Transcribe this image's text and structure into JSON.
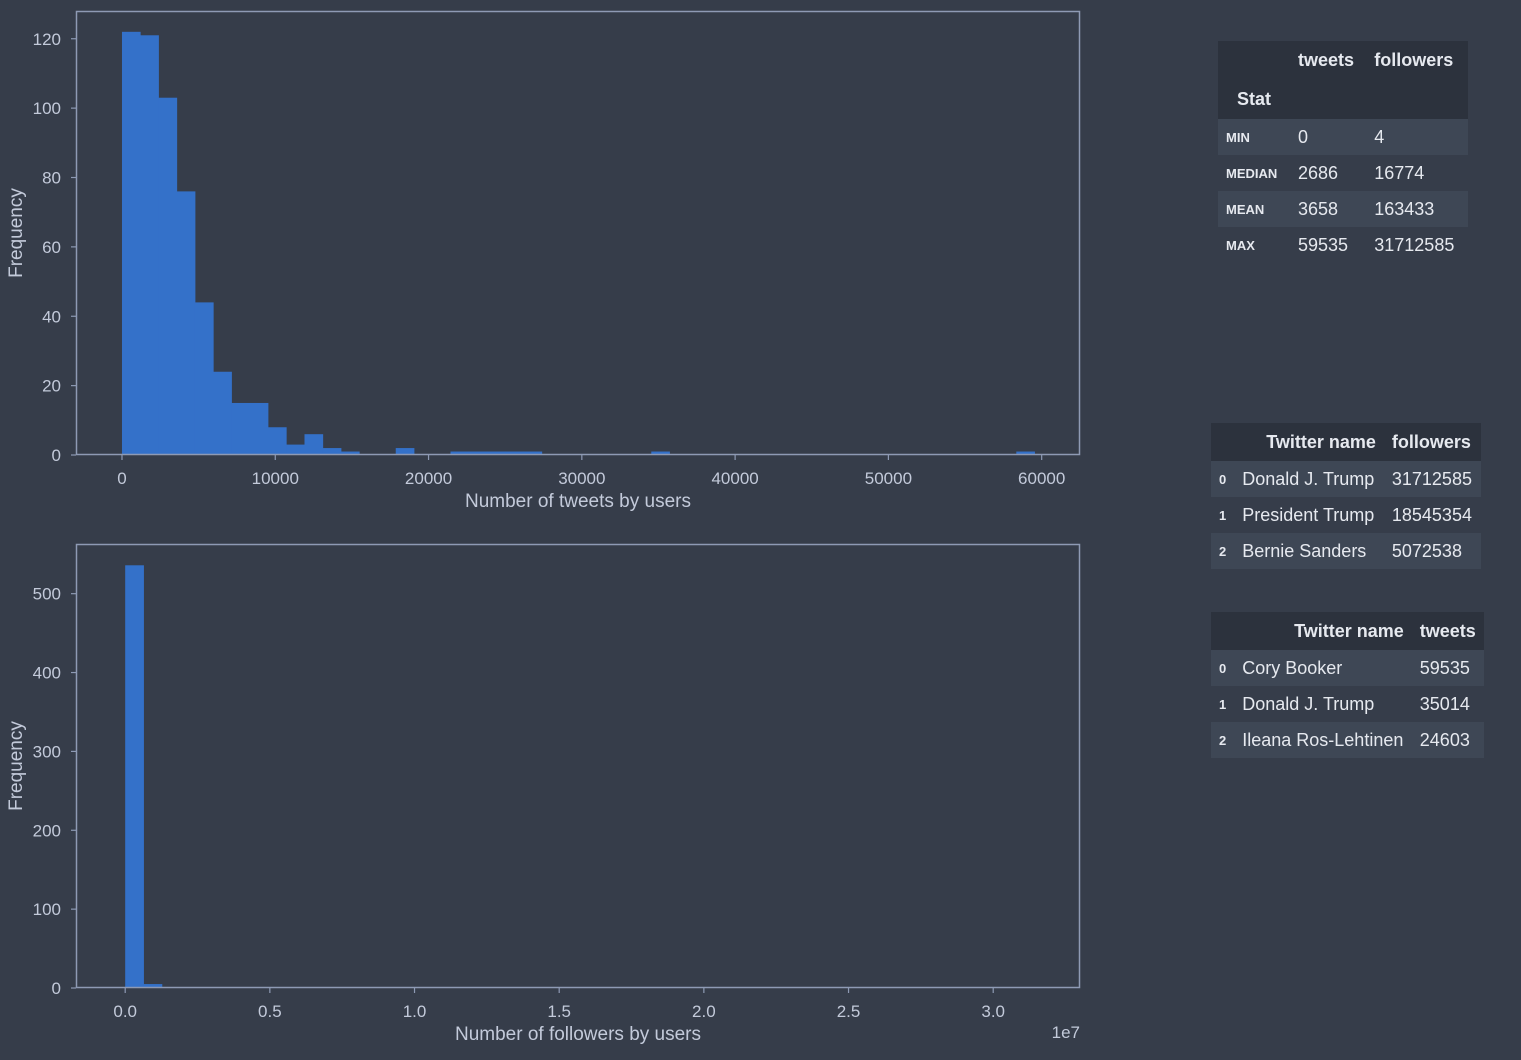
{
  "colors": {
    "background": "#363d4a",
    "bar": "#3471c9",
    "axes_frame": "#8e9ab4",
    "text": "#c3cada"
  },
  "chart_data": [
    {
      "type": "bar",
      "subtype": "histogram",
      "bin_width": 1190.7,
      "bin_start": 0,
      "values": [
        122,
        121,
        103,
        76,
        44,
        24,
        15,
        15,
        8,
        3,
        6,
        2,
        1,
        0,
        0,
        2,
        0,
        0,
        1,
        1,
        1,
        1,
        1,
        0,
        0,
        0,
        0,
        0,
        0,
        1,
        0,
        0,
        0,
        0,
        0,
        0,
        0,
        0,
        0,
        0,
        0,
        0,
        0,
        0,
        0,
        0,
        0,
        0,
        0,
        1
      ],
      "xlim": [
        -3000,
        62500
      ],
      "ylim": [
        0,
        128
      ],
      "xticks": [
        0,
        10000,
        20000,
        30000,
        40000,
        50000,
        60000
      ],
      "xtick_labels": [
        "0",
        "10000",
        "20000",
        "30000",
        "40000",
        "50000",
        "60000"
      ],
      "yticks": [
        0,
        20,
        40,
        60,
        80,
        100,
        120
      ],
      "ytick_labels": [
        "0",
        "20",
        "40",
        "60",
        "80",
        "100",
        "120"
      ],
      "xlabel": "Number of tweets by users",
      "ylabel": "Frequency",
      "offset_text": ""
    },
    {
      "type": "bar",
      "subtype": "histogram",
      "bin_width": 0.0634,
      "bin_start": 0,
      "values": [
        536,
        5,
        0,
        1,
        1,
        0,
        0,
        1,
        0,
        0,
        0,
        0,
        0,
        0,
        0,
        0,
        0,
        0,
        0,
        0,
        0,
        0,
        0,
        0,
        0,
        0,
        0,
        0,
        0,
        1,
        0,
        0,
        0,
        0,
        0,
        0,
        0,
        0,
        0,
        0,
        0,
        0,
        0,
        0,
        0,
        0,
        0,
        0,
        0,
        1
      ],
      "xlim": [
        -0.17,
        3.3
      ],
      "ylim": [
        0,
        563
      ],
      "xticks": [
        0,
        0.5,
        1.0,
        1.5,
        2.0,
        2.5,
        3.0
      ],
      "xtick_labels": [
        "0.0",
        "0.5",
        "1.0",
        "1.5",
        "2.0",
        "2.5",
        "3.0"
      ],
      "yticks": [
        0,
        100,
        200,
        300,
        400,
        500
      ],
      "ytick_labels": [
        "0",
        "100",
        "200",
        "300",
        "400",
        "500"
      ],
      "xlabel": "Number of followers by users",
      "ylabel": "Frequency",
      "offset_text": "1e7"
    }
  ],
  "stats_table": {
    "col1": "tweets",
    "col2": "followers",
    "index_name": "Stat",
    "rows": [
      {
        "label": "MIN",
        "tweets": "0",
        "followers": "4"
      },
      {
        "label": "MEDIAN",
        "tweets": "2686",
        "followers": "16774"
      },
      {
        "label": "MEAN",
        "tweets": "3658",
        "followers": "163433"
      },
      {
        "label": "MAX",
        "tweets": "59535",
        "followers": "31712585"
      }
    ]
  },
  "top_followers_table": {
    "col1": "Twitter name",
    "col2": "followers",
    "rows": [
      {
        "idx": "0",
        "name": "Donald J. Trump",
        "value": "31712585"
      },
      {
        "idx": "1",
        "name": "President Trump",
        "value": "18545354"
      },
      {
        "idx": "2",
        "name": "Bernie Sanders",
        "value": "5072538"
      }
    ]
  },
  "top_tweets_table": {
    "col1": "Twitter name",
    "col2": "tweets",
    "rows": [
      {
        "idx": "0",
        "name": "Cory Booker",
        "value": "59535"
      },
      {
        "idx": "1",
        "name": "Donald J. Trump",
        "value": "35014"
      },
      {
        "idx": "2",
        "name": "Ileana Ros-Lehtinen",
        "value": "24603"
      }
    ]
  }
}
